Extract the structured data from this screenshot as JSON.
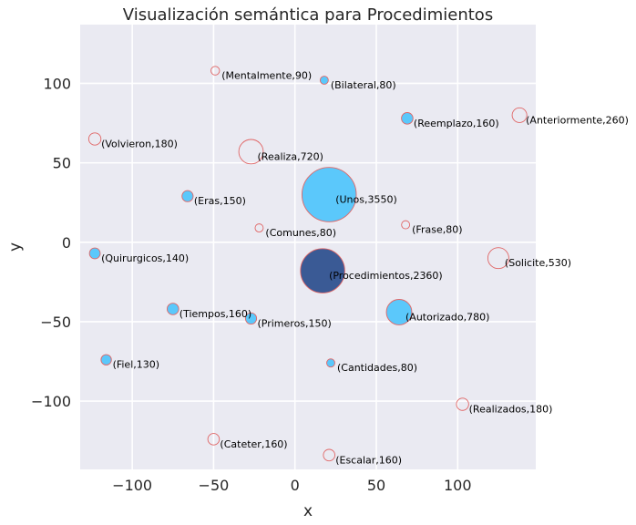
{
  "chart_data": {
    "type": "scatter",
    "title": "Visualización semántica para Procedimientos",
    "xlabel": "x",
    "ylabel": "y",
    "xlim": [
      -132,
      148
    ],
    "ylim": [
      -143,
      137
    ],
    "xticks": [
      -100,
      -50,
      0,
      50,
      100
    ],
    "yticks": [
      -100,
      -50,
      0,
      50,
      100
    ],
    "grid": true,
    "colors": {
      "background": "#eaeaf2",
      "grid": "#ffffff",
      "filled": "#5bc8fb",
      "highlight": "#3a5a95",
      "edge": "#e06666"
    },
    "points": [
      {
        "label": "(Mentalmente,90)",
        "x": -49,
        "y": 108,
        "size": 90,
        "filled": false
      },
      {
        "label": "(Bilateral,80)",
        "x": 18,
        "y": 102,
        "size": 80,
        "filled": true
      },
      {
        "label": "(Reemplazo,160)",
        "x": 69,
        "y": 78,
        "size": 160,
        "filled": true
      },
      {
        "label": "(Anteriormente,260)",
        "x": 138,
        "y": 80,
        "size": 260,
        "filled": false
      },
      {
        "label": "(Volvieron,180)",
        "x": -123,
        "y": 65,
        "size": 180,
        "filled": false
      },
      {
        "label": "(Realiza,720)",
        "x": -27,
        "y": 57,
        "size": 720,
        "filled": false
      },
      {
        "label": "(Unos,3550)",
        "x": 21,
        "y": 30,
        "size": 3550,
        "filled": true
      },
      {
        "label": "(Eras,150)",
        "x": -66,
        "y": 29,
        "size": 150,
        "filled": true
      },
      {
        "label": "(Comunes,80)",
        "x": -22,
        "y": 9,
        "size": 80,
        "filled": false
      },
      {
        "label": "(Frase,80)",
        "x": 68,
        "y": 11,
        "size": 80,
        "filled": false
      },
      {
        "label": "(Quirurgicos,140)",
        "x": -123,
        "y": -7,
        "size": 140,
        "filled": true
      },
      {
        "label": "(Solicite,530)",
        "x": 125,
        "y": -10,
        "size": 530,
        "filled": false
      },
      {
        "label": "(Procedimientos,2360)",
        "x": 17,
        "y": -18,
        "size": 2360,
        "filled": true,
        "highlight": true
      },
      {
        "label": "(Tiempos,160)",
        "x": -75,
        "y": -42,
        "size": 160,
        "filled": true
      },
      {
        "label": "(Primeros,150)",
        "x": -27,
        "y": -48,
        "size": 150,
        "filled": true
      },
      {
        "label": "(Autorizado,780)",
        "x": 64,
        "y": -44,
        "size": 780,
        "filled": true
      },
      {
        "label": "(Fiel,130)",
        "x": -116,
        "y": -74,
        "size": 130,
        "filled": true
      },
      {
        "label": "(Cantidades,80)",
        "x": 22,
        "y": -76,
        "size": 80,
        "filled": true
      },
      {
        "label": "(Realizados,180)",
        "x": 103,
        "y": -102,
        "size": 180,
        "filled": false
      },
      {
        "label": "(Cateter,160)",
        "x": -50,
        "y": -124,
        "size": 160,
        "filled": false
      },
      {
        "label": "(Escalar,160)",
        "x": 21,
        "y": -134,
        "size": 160,
        "filled": false
      }
    ]
  }
}
